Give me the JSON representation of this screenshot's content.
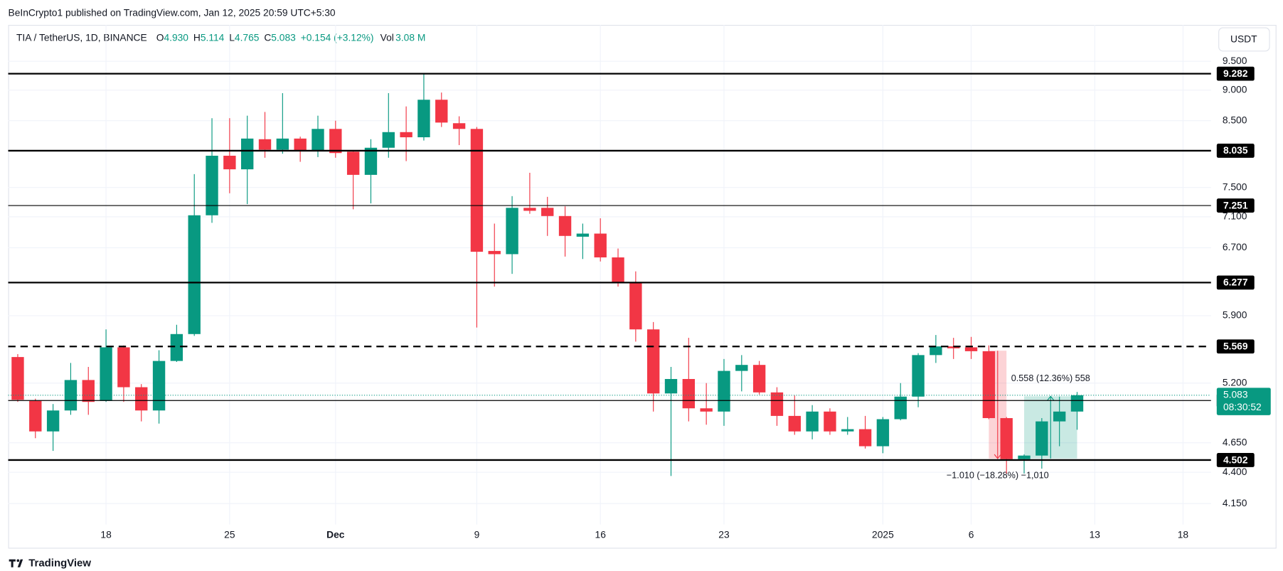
{
  "chart_data": {
    "type": "candlestick",
    "published": "BeInCrypto1 published on TradingView.com, Jan 12, 2025 20:59 UTC+5:30",
    "symbol": "TIA / TetherUS, 1D, BINANCE",
    "ohlc_labels": [
      {
        "key": "O",
        "value": "4.930"
      },
      {
        "key": "H",
        "value": "5.114"
      },
      {
        "key": "L",
        "value": "4.765"
      },
      {
        "key": "C",
        "value": "5.083"
      }
    ],
    "change": "+0.154 (+3.12%)",
    "volume_key": "Vol",
    "volume": "3.08 M",
    "currency": "USDT",
    "branding": "TradingView",
    "up_color": "#089981",
    "down_color": "#f23645",
    "log_scale": true,
    "grid": true,
    "dates": [
      "2024-11-13",
      "2024-11-14",
      "2024-11-15",
      "2024-11-16",
      "2024-11-17",
      "2024-11-18",
      "2024-11-19",
      "2024-11-20",
      "2024-11-21",
      "2024-11-22",
      "2024-11-23",
      "2024-11-24",
      "2024-11-25",
      "2024-11-26",
      "2024-11-27",
      "2024-11-28",
      "2024-11-29",
      "2024-11-30",
      "2024-12-01",
      "2024-12-02",
      "2024-12-03",
      "2024-12-04",
      "2024-12-05",
      "2024-12-06",
      "2024-12-07",
      "2024-12-08",
      "2024-12-09",
      "2024-12-10",
      "2024-12-11",
      "2024-12-12",
      "2024-12-13",
      "2024-12-14",
      "2024-12-15",
      "2024-12-16",
      "2024-12-17",
      "2024-12-18",
      "2024-12-19",
      "2024-12-20",
      "2024-12-21",
      "2024-12-22",
      "2024-12-23",
      "2024-12-24",
      "2024-12-25",
      "2024-12-26",
      "2024-12-27",
      "2024-12-28",
      "2024-12-29",
      "2024-12-30",
      "2024-12-31",
      "2025-01-01",
      "2025-01-02",
      "2025-01-03",
      "2025-01-04",
      "2025-01-05",
      "2025-01-06",
      "2025-01-07",
      "2025-01-08",
      "2025-01-09",
      "2025-01-10",
      "2025-01-11",
      "2025-01-12"
    ],
    "open": [
      5.46,
      5.03,
      4.75,
      4.94,
      5.23,
      5.03,
      5.56,
      5.16,
      4.94,
      5.42,
      5.7,
      7.12,
      7.96,
      7.76,
      8.21,
      8.05,
      8.22,
      8.03,
      8.37,
      8.02,
      7.68,
      8.08,
      8.32,
      8.24,
      8.84,
      8.46,
      8.37,
      6.66,
      6.62,
      7.22,
      7.22,
      7.11,
      6.84,
      6.88,
      6.58,
      6.28,
      5.75,
      5.1,
      5.24,
      4.96,
      4.93,
      5.32,
      5.38,
      5.11,
      4.89,
      4.75,
      4.93,
      4.75,
      4.77,
      4.62,
      4.86,
      5.07,
      5.48,
      5.57,
      5.56,
      5.52,
      4.87,
      4.51,
      4.54,
      4.84,
      4.93
    ],
    "high": [
      5.49,
      5.05,
      5.0,
      5.4,
      5.36,
      5.75,
      5.58,
      5.19,
      5.53,
      5.8,
      7.69,
      8.54,
      8.54,
      8.58,
      8.64,
      8.95,
      8.25,
      8.58,
      8.5,
      8.04,
      8.21,
      8.95,
      8.73,
      9.28,
      8.96,
      8.57,
      8.4,
      7.01,
      7.38,
      7.71,
      7.37,
      7.24,
      7.01,
      7.08,
      6.69,
      6.41,
      5.83,
      5.36,
      5.66,
      5.2,
      5.44,
      5.48,
      5.42,
      5.16,
      5.08,
      4.99,
      4.96,
      4.88,
      4.89,
      4.88,
      5.2,
      5.5,
      5.69,
      5.66,
      5.67,
      5.58,
      4.88,
      4.55,
      4.87,
      5.07,
      5.114
    ],
    "low": [
      5.02,
      4.69,
      4.58,
      4.9,
      4.9,
      5.02,
      5.02,
      4.84,
      4.82,
      5.41,
      5.68,
      7.02,
      7.42,
      7.27,
      7.93,
      7.99,
      7.87,
      7.94,
      7.93,
      7.2,
      7.28,
      7.93,
      7.88,
      8.19,
      8.4,
      8.12,
      5.77,
      6.23,
      6.38,
      7.14,
      6.85,
      6.59,
      6.56,
      6.53,
      6.23,
      5.62,
      4.93,
      4.37,
      4.84,
      4.81,
      4.8,
      5.12,
      5.09,
      4.8,
      4.72,
      4.68,
      4.72,
      4.72,
      4.6,
      4.56,
      4.85,
      4.97,
      5.4,
      5.44,
      5.44,
      4.86,
      4.39,
      4.39,
      4.43,
      4.62,
      4.765
    ],
    "close": [
      5.04,
      4.75,
      4.94,
      5.23,
      5.02,
      5.56,
      5.16,
      4.94,
      5.42,
      5.7,
      7.12,
      7.96,
      7.76,
      8.22,
      8.05,
      8.22,
      8.03,
      8.37,
      8.0,
      7.68,
      8.08,
      8.32,
      8.24,
      8.84,
      8.47,
      8.37,
      6.65,
      6.62,
      7.22,
      7.18,
      7.11,
      6.85,
      6.88,
      6.58,
      6.28,
      5.75,
      5.1,
      5.24,
      4.96,
      4.93,
      5.32,
      5.38,
      5.11,
      4.89,
      4.75,
      4.93,
      4.75,
      4.77,
      4.62,
      4.86,
      5.07,
      5.48,
      5.57,
      5.55,
      5.52,
      4.87,
      4.51,
      4.54,
      4.84,
      4.93,
      5.083
    ],
    "xlim": [
      "2024-11-12T11:00",
      "2025-01-19T14:00"
    ],
    "xticks": [
      {
        "value": "2024-11-18",
        "label": "18"
      },
      {
        "value": "2024-11-25",
        "label": "25"
      },
      {
        "value": "2024-12-01",
        "label": "Dec"
      },
      {
        "value": "2024-12-09",
        "label": "9"
      },
      {
        "value": "2024-12-16",
        "label": "16"
      },
      {
        "value": "2024-12-23",
        "label": "23"
      },
      {
        "value": "2025-01-01",
        "label": "2025"
      },
      {
        "value": "2025-01-06",
        "label": "6"
      },
      {
        "value": "2025-01-13",
        "label": "13"
      },
      {
        "value": "2025-01-18",
        "label": "18"
      }
    ],
    "ylim": [
      3.99,
      10.17
    ],
    "yticks": [
      {
        "value": 9.5,
        "label": "9.500"
      },
      {
        "value": 9.0,
        "label": "9.000"
      },
      {
        "value": 8.5,
        "label": "8.500"
      },
      {
        "value": 7.5,
        "label": "7.500"
      },
      {
        "value": 7.1,
        "label": "7.100"
      },
      {
        "value": 6.7,
        "label": "6.700"
      },
      {
        "value": 5.9,
        "label": "5.900"
      },
      {
        "value": 5.2,
        "label": "5.200"
      },
      {
        "value": 4.65,
        "label": "4.650"
      },
      {
        "value": 4.4,
        "label": "4.400"
      },
      {
        "value": 4.15,
        "label": "4.150"
      }
    ],
    "levels": [
      9.282,
      8.035,
      7.251,
      6.277,
      5.569,
      5.033,
      4.502
    ],
    "level_styles": [
      "bold",
      "bold",
      "thin",
      "bold",
      "dashed",
      "thin",
      "bold"
    ],
    "last_price": 5.083,
    "countdown": "08:30:52",
    "measurements": [
      {
        "label": "−1.010 (−18.28%) −1,010",
        "color": "#f23645",
        "direction": "down",
        "from": "2025-01-07",
        "to": "2025-01-08",
        "top": 5.525,
        "bottom": 4.515
      },
      {
        "label": "0.558 (12.36%) 558",
        "color": "#089981",
        "direction": "up",
        "from": "2025-01-09",
        "to": "2025-01-12",
        "top": 5.073,
        "bottom": 4.515
      }
    ]
  }
}
